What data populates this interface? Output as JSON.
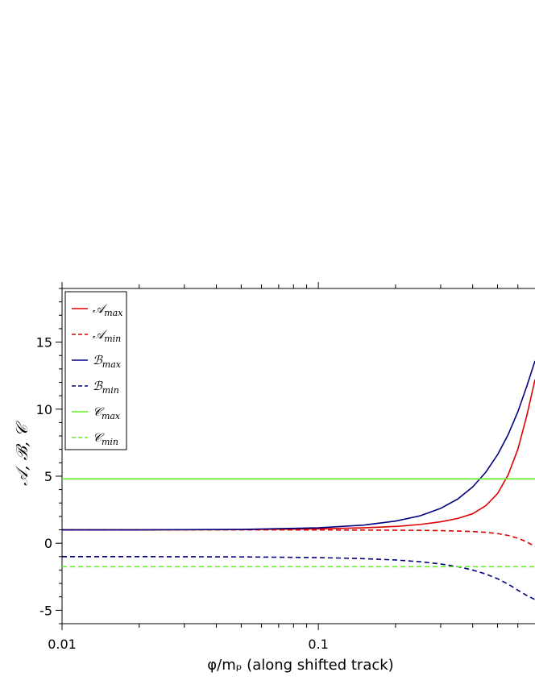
{
  "chart_data": {
    "type": "line",
    "title": "",
    "xlabel": "φ/mₚ (along shifted track)",
    "ylabel": "𝒜, ℬ, 𝒞",
    "x_scale": "log",
    "xlim": [
      0.01,
      0.7
    ],
    "ylim": [
      -6,
      19
    ],
    "x_tick_labels": [
      "0.01",
      "0.1"
    ],
    "x_tick_values": [
      0.01,
      0.1
    ],
    "y_tick_labels": [
      "-5",
      "0",
      "5",
      "10",
      "15"
    ],
    "y_tick_values": [
      -5,
      0,
      5,
      10,
      15
    ],
    "grid": false,
    "legend_position": "top-left",
    "x": [
      0.01,
      0.02,
      0.05,
      0.1,
      0.15,
      0.2,
      0.25,
      0.3,
      0.35,
      0.4,
      0.45,
      0.5,
      0.55,
      0.6,
      0.65,
      0.7
    ],
    "series": [
      {
        "name": "𝒜",
        "subscript": "max",
        "color": "#e00000",
        "dash": "solid",
        "values": [
          1.0,
          1.0,
          1.02,
          1.07,
          1.15,
          1.25,
          1.4,
          1.6,
          1.85,
          2.2,
          2.8,
          3.7,
          5.1,
          7.0,
          9.5,
          12.2
        ]
      },
      {
        "name": "𝒜",
        "subscript": "min",
        "color": "#e00000",
        "dash": "dashed",
        "values": [
          1.0,
          1.0,
          1.0,
          0.99,
          0.98,
          0.97,
          0.96,
          0.94,
          0.91,
          0.87,
          0.81,
          0.72,
          0.58,
          0.38,
          0.1,
          -0.25
        ]
      },
      {
        "name": "ℬ",
        "subscript": "max",
        "color": "#000080",
        "dash": "solid",
        "values": [
          1.0,
          1.0,
          1.03,
          1.15,
          1.35,
          1.65,
          2.05,
          2.6,
          3.3,
          4.2,
          5.3,
          6.6,
          8.1,
          9.8,
          11.7,
          13.6
        ]
      },
      {
        "name": "ℬ",
        "subscript": "min",
        "color": "#000080",
        "dash": "dashed",
        "values": [
          -1.0,
          -1.0,
          -1.02,
          -1.07,
          -1.15,
          -1.25,
          -1.38,
          -1.55,
          -1.75,
          -2.0,
          -2.3,
          -2.65,
          -3.05,
          -3.5,
          -3.9,
          -4.2
        ]
      },
      {
        "name": "𝒞",
        "subscript": "max",
        "color": "#66ee22",
        "dash": "solid",
        "values": [
          4.8,
          4.8,
          4.8,
          4.8,
          4.8,
          4.8,
          4.8,
          4.8,
          4.8,
          4.8,
          4.8,
          4.8,
          4.8,
          4.8,
          4.8,
          4.8
        ]
      },
      {
        "name": "𝒞",
        "subscript": "min",
        "color": "#66ee22",
        "dash": "dashed",
        "values": [
          -1.75,
          -1.75,
          -1.75,
          -1.75,
          -1.75,
          -1.75,
          -1.75,
          -1.75,
          -1.75,
          -1.75,
          -1.75,
          -1.75,
          -1.75,
          -1.75,
          -1.75,
          -1.75
        ]
      }
    ]
  }
}
